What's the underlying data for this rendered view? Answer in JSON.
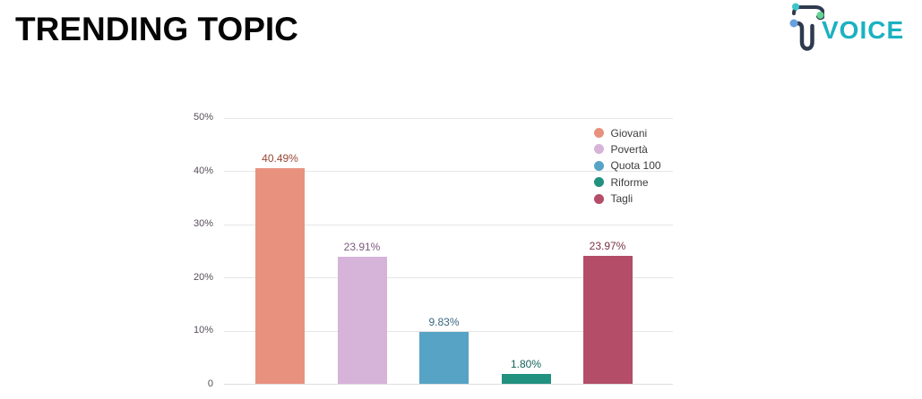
{
  "header": {
    "title": "TRENDING TOPIC"
  },
  "logo": {
    "text": "VOICE",
    "text_color": "#1bb1c1",
    "line_color": "#2e3b4e",
    "dot_teal": "#3fc4cb",
    "dot_green": "#63d393",
    "dot_blue": "#689fdd"
  },
  "chart_data": {
    "type": "bar",
    "title": "",
    "xlabel": "",
    "ylabel": "",
    "categories": [
      "Giovani",
      "Povertà",
      "Quota 100",
      "Riforme",
      "Tagli"
    ],
    "values": [
      40.49,
      23.91,
      9.83,
      1.8,
      23.97
    ],
    "value_labels": [
      "40.49%",
      "23.91%",
      "9.83%",
      "1.80%",
      "23.97%"
    ],
    "bar_colors": [
      "#e9917f",
      "#d6b3d8",
      "#57a3c5",
      "#22917f",
      "#b44d67"
    ],
    "annotation_colors": [
      "#9a4636",
      "#7c5a7e",
      "#39677e",
      "#14635a",
      "#7b3346"
    ],
    "ylim": [
      0,
      50
    ],
    "y_ticks": [
      {
        "label": "50%",
        "value": 50
      },
      {
        "label": "40%",
        "value": 40
      },
      {
        "label": "30%",
        "value": 30
      },
      {
        "label": "20%",
        "value": 20
      },
      {
        "label": "10%",
        "value": 10
      },
      {
        "label": "0",
        "value": 0
      }
    ],
    "grid": true,
    "legend_position": "right",
    "legend": [
      "Giovani",
      "Povertà",
      "Quota 100",
      "Riforme",
      "Tagli"
    ]
  }
}
